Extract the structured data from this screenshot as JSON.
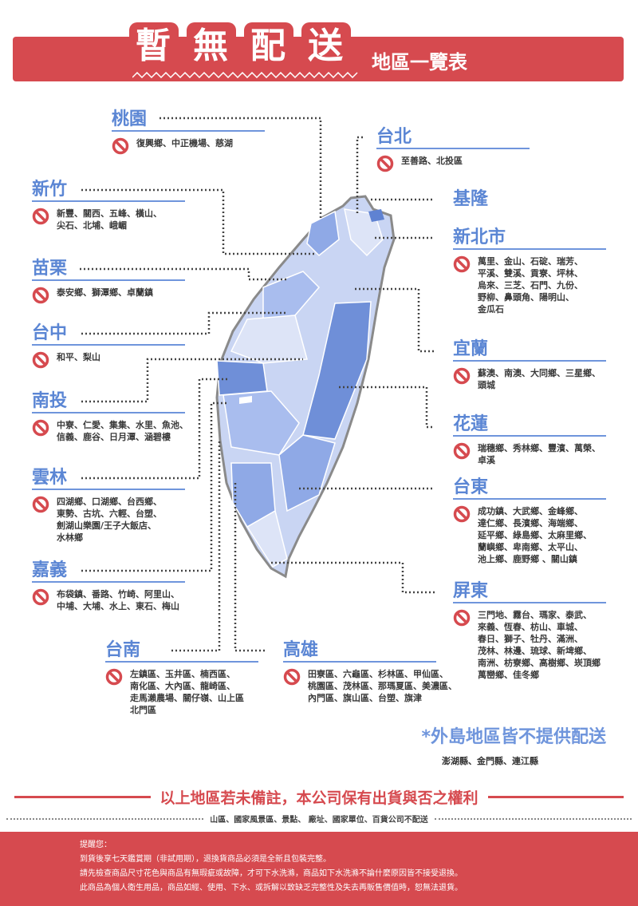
{
  "header": {
    "title_chars": [
      "暫",
      "無",
      "配",
      "送"
    ],
    "subtitle": "地區一覽表"
  },
  "colors": {
    "brand_red": "#d64a4f",
    "title_blue": "#5b86d4",
    "map_light": "#c9d5f3",
    "map_dark": "#6f8fd8"
  },
  "regions": [
    {
      "name": "桃園",
      "lines": [
        "復興鄉、中正機場、慈湖"
      ]
    },
    {
      "name": "台北",
      "lines": [
        "至善路、北投區"
      ]
    },
    {
      "name": "新竹",
      "lines": [
        "新豐、關西、五峰、橫山、",
        "尖石、北埔、峨嵋"
      ]
    },
    {
      "name": "基隆",
      "lines": []
    },
    {
      "name": "新北市",
      "lines": [
        "萬里、金山、石碇、瑞芳、",
        "平溪、雙溪、貢寮、坪林、",
        "烏來、三芝、石門、九份、",
        "野柳、鼻頭角、陽明山、",
        "金瓜石"
      ]
    },
    {
      "name": "苗栗",
      "lines": [
        "泰安鄉、獅潭鄉、卓蘭鎮"
      ]
    },
    {
      "name": "台中",
      "lines": [
        "和平、梨山"
      ]
    },
    {
      "name": "宜蘭",
      "lines": [
        "蘇澳、南澳、大同鄉、三星鄉、",
        "頭城"
      ]
    },
    {
      "name": "南投",
      "lines": [
        "中寮、仁愛、集集、水里、魚池、",
        "信義、鹿谷、日月潭、涵碧樓"
      ]
    },
    {
      "name": "花蓮",
      "lines": [
        "瑞穗鄉、秀林鄉、豐濱、萬榮、",
        "卓溪"
      ]
    },
    {
      "name": "雲林",
      "lines": [
        "四湖鄉、口湖鄉、台西鄉、",
        "東勢、古坑、六輕、台塑、",
        "劍湖山樂園/王子大飯店、",
        "水林鄉"
      ]
    },
    {
      "name": "台東",
      "lines": [
        "成功鎮、大武鄉、金峰鄉、",
        "達仁鄉、長濱鄉、海端鄉、",
        "延平鄉、綠島鄉、太麻里鄉、",
        "蘭嶼鄉、卑南鄉、太平山、",
        "池上鄉、鹿野鄉 、關山鎮"
      ]
    },
    {
      "name": "嘉義",
      "lines": [
        "布袋鎮、番路、竹崎、阿里山、",
        "中埔、大埔、水上、東石、梅山"
      ]
    },
    {
      "name": "屏東",
      "lines": [
        "三門地、霧台、瑪家、泰武、",
        "來義、恆春、枋山、車城、",
        "春日、獅子、牡丹、滿洲、",
        "茂林、林邊、琉球、新埤鄉、",
        "南洲、枋寮鄉、高樹鄉、崁頂鄉",
        "萬巒鄉、佳冬鄉"
      ]
    },
    {
      "name": "台南",
      "lines": [
        "左鎮區、玉井區、楠西區、",
        "南化區、大內區、龍崎區、",
        "走馬瀨農場、關仔嶺、山上區",
        "北門區"
      ]
    },
    {
      "name": "高雄",
      "lines": [
        "田寮區、六龜區、杉林區、甲仙區、",
        "桃園區、茂林區、那瑪夏區、美濃區、",
        "內門區、旗山區、台塑、旗津"
      ]
    }
  ],
  "islands": {
    "title": "*外島地區皆不提供配送",
    "list": "澎湖縣、金門縣、連江縣"
  },
  "rights_notice": "以上地區若未備註，本公司保有出貨與否之權利",
  "exclusions": "山區、國家風景區、景點、 廠址、國家單位、百貨公司不配送",
  "reminder": {
    "title": "提醒您：",
    "lines": [
      "到貨後享七天鑑賞期（非試用期），退換貨商品必須是全新且包裝完整。",
      "請先檢查商品尺寸花色與商品有無瑕疵或故障，才可下水洗滌，商品如下水洗滌不論什麼原因皆不接受退換。",
      "此商品為個人衛生用品，商品如經、使用、下水、或拆解以致缺乏完整性及失去再販售價值時，恕無法退貨。"
    ]
  }
}
